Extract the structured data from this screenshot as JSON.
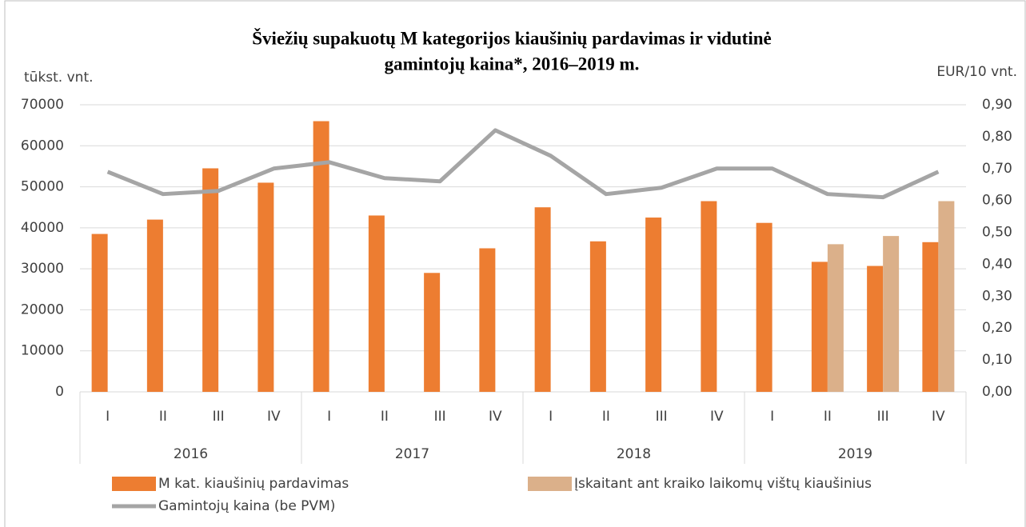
{
  "chart_data": {
    "type": "bar",
    "title": [
      "Šviežių supakuotų M kategorijos kiaušinių pardavimas ir vidutinė",
      "gamintojų kaina*, 2016–2019 m."
    ],
    "y_label": "tūkst. vnt.",
    "y2_label": "EUR/10 vnt.",
    "categories": [
      "I",
      "II",
      "III",
      "IV",
      "I",
      "II",
      "III",
      "IV",
      "I",
      "II",
      "III",
      "IV",
      "I",
      "II",
      "III",
      "IV"
    ],
    "groups": [
      "2016",
      "2017",
      "2018",
      "2019"
    ],
    "series": [
      {
        "name": "M kat. kiaušinių pardavimas",
        "type": "bar",
        "color": "#ed7d31",
        "values": [
          38500,
          42000,
          54500,
          51000,
          66000,
          43000,
          29000,
          35000,
          45000,
          36700,
          42500,
          46500,
          41200,
          31700,
          30700,
          36500
        ]
      },
      {
        "name": "Įskaitant ant kraiko laikomų vištų kiaušinius",
        "type": "bar",
        "color": "#dbb08a",
        "values": [
          null,
          null,
          null,
          null,
          null,
          null,
          null,
          null,
          null,
          null,
          null,
          null,
          null,
          36000,
          38000,
          46500
        ]
      },
      {
        "name": "Gamintojų kaina (be PVM)",
        "type": "line",
        "axis": "y2",
        "color": "#a5a5a5",
        "values": [
          0.69,
          0.62,
          0.63,
          0.7,
          0.72,
          0.67,
          0.66,
          0.82,
          0.74,
          0.62,
          0.64,
          0.7,
          0.7,
          0.62,
          0.61,
          0.69
        ]
      }
    ],
    "ylim": [
      0,
      70000
    ],
    "yticks": [
      0,
      10000,
      20000,
      30000,
      40000,
      50000,
      60000,
      70000
    ],
    "y2lim": [
      0,
      0.9
    ],
    "y2ticks": [
      {
        "value": 0,
        "label": "0,00"
      },
      {
        "value": 0.1,
        "label": "0,10"
      },
      {
        "value": 0.2,
        "label": "0,20"
      },
      {
        "value": 0.3,
        "label": "0,30"
      },
      {
        "value": 0.4,
        "label": "0,40"
      },
      {
        "value": 0.5,
        "label": "0,50"
      },
      {
        "value": 0.6,
        "label": "0,60"
      },
      {
        "value": 0.7,
        "label": "0,70"
      },
      {
        "value": 0.8,
        "label": "0,80"
      },
      {
        "value": 0.9,
        "label": "0,90"
      }
    ],
    "grid": true
  }
}
